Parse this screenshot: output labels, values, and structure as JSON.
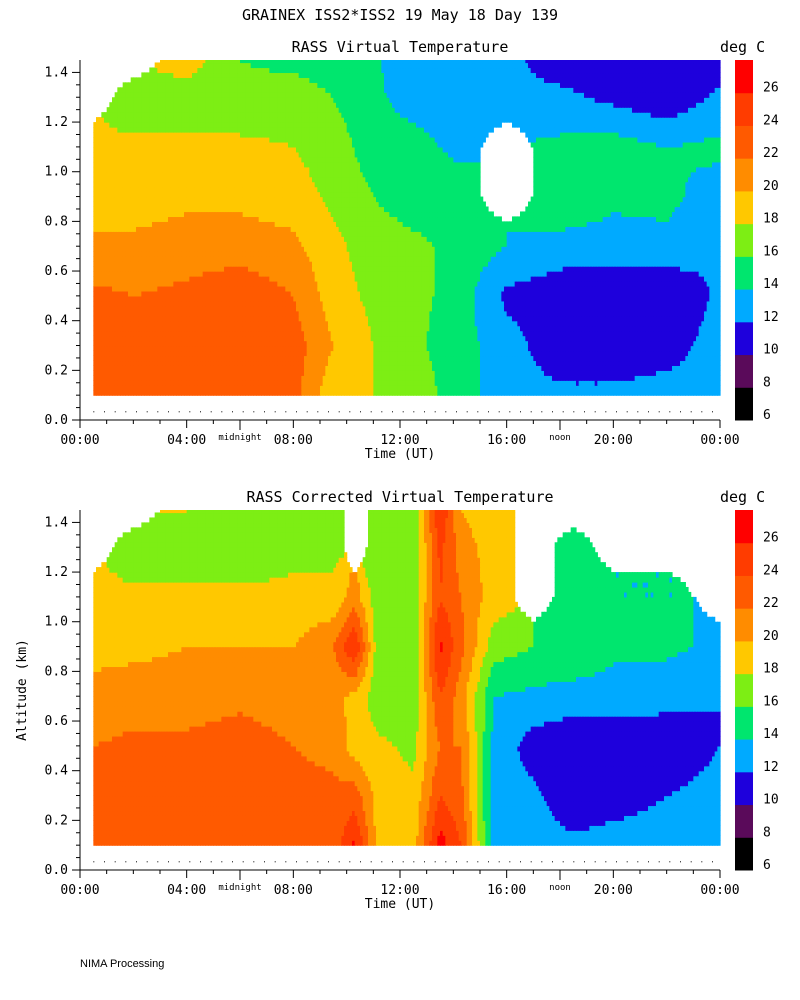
{
  "header": {
    "title": "GRAINEX ISS2*ISS2  19 May 18 Day 139"
  },
  "footer": {
    "text": "NIMA Processing"
  },
  "chart_data": [
    {
      "type": "heatmap",
      "title": "RASS Virtual Temperature",
      "xlabel": "Time (UT)",
      "ylabel": "",
      "colorbar_label": "deg C",
      "xlim": [
        0,
        24
      ],
      "ylim": [
        0.0,
        1.45
      ],
      "x_tick_labels": [
        "00:00",
        "04:00",
        "08:00",
        "12:00",
        "16:00",
        "20:00",
        "00:00"
      ],
      "y_tick_labels": [
        "0.0",
        "0.2",
        "0.4",
        "0.6",
        "0.8",
        "1.0",
        "1.2",
        "1.4"
      ],
      "time_markers": [
        {
          "label": "midnight",
          "x_hours": 6
        },
        {
          "label": "noon",
          "x_hours": 18
        }
      ],
      "levels": [
        6,
        8,
        10,
        12,
        14,
        16,
        18,
        20,
        22,
        24,
        26
      ],
      "level_colors": [
        "#000000",
        "#5a0a5a",
        "#1e00dc",
        "#00aaff",
        "#00e66e",
        "#7dee14",
        "#ffc800",
        "#ff8c00",
        "#ff5a00",
        "#ff3c00",
        "#ff0000"
      ],
      "grid": {
        "x": [
          0.5,
          2,
          4,
          6,
          8,
          9.5,
          11,
          12.5,
          14,
          16,
          18,
          20,
          22,
          24
        ],
        "y": [
          0.1,
          0.3,
          0.5,
          0.7,
          0.9,
          1.1,
          1.3,
          1.45
        ],
        "values": [
          [
            23.5,
            23.2,
            23.2,
            22.8,
            22.8,
            18.5,
            18.0,
            17.5,
            15.0,
            13.0,
            12.5,
            12.5,
            13.0,
            13.0
          ],
          [
            23.0,
            23.5,
            23.8,
            23.8,
            23.0,
            20.0,
            18.0,
            16.5,
            15.0,
            13.0,
            10.5,
            10.5,
            11.0,
            13.0
          ],
          [
            22.5,
            22.0,
            22.5,
            23.5,
            22.0,
            19.0,
            17.5,
            16.5,
            15.5,
            11.5,
            10.8,
            10.5,
            10.0,
            12.5
          ],
          [
            20.5,
            20.5,
            21.0,
            21.0,
            20.5,
            18.5,
            17.0,
            16.5,
            15.5,
            14.0,
            13.0,
            13.0,
            13.5,
            12.0
          ],
          [
            19.0,
            19.0,
            19.5,
            19.5,
            19.0,
            17.5,
            16.0,
            15.0,
            15.5,
            null,
            16.0,
            14.5,
            14.5,
            13.0
          ],
          [
            18.5,
            18.5,
            18.5,
            18.5,
            18.0,
            17.0,
            15.0,
            15.0,
            13.5,
            null,
            14.5,
            15.0,
            14.0,
            14.5
          ],
          [
            null,
            16.5,
            17.0,
            16.5,
            17.0,
            16.0,
            14.5,
            13.0,
            12.5,
            12.5,
            12.5,
            11.5,
            10.5,
            12.5
          ],
          [
            null,
            null,
            19.0,
            16.0,
            15.5,
            15.0,
            14.5,
            12.0,
            12.5,
            12.5,
            11.0,
            11.0,
            10.5,
            11.0
          ]
        ]
      }
    },
    {
      "type": "heatmap",
      "title": "RASS Corrected Virtual Temperature",
      "xlabel": "Time (UT)",
      "ylabel": "Altitude (km)",
      "colorbar_label": "deg C",
      "xlim": [
        0,
        24
      ],
      "ylim": [
        0.0,
        1.45
      ],
      "x_tick_labels": [
        "00:00",
        "04:00",
        "08:00",
        "12:00",
        "16:00",
        "20:00",
        "00:00"
      ],
      "y_tick_labels": [
        "0.0",
        "0.2",
        "0.4",
        "0.6",
        "0.8",
        "1.0",
        "1.2",
        "1.4"
      ],
      "time_markers": [
        {
          "label": "midnight",
          "x_hours": 6
        },
        {
          "label": "noon",
          "x_hours": 18
        }
      ],
      "levels": [
        6,
        8,
        10,
        12,
        14,
        16,
        18,
        20,
        22,
        24,
        26
      ],
      "level_colors": [
        "#000000",
        "#5a0a5a",
        "#1e00dc",
        "#00aaff",
        "#00e66e",
        "#7dee14",
        "#ffc800",
        "#ff8c00",
        "#ff5a00",
        "#ff3c00",
        "#ff0000"
      ],
      "grid": {
        "x": [
          0.5,
          2,
          4,
          6,
          8,
          9.5,
          10.3,
          11.2,
          12.5,
          13.5,
          14.3,
          15.5,
          17,
          18.5,
          20,
          22,
          24
        ],
        "y": [
          0.1,
          0.3,
          0.5,
          0.7,
          0.9,
          1.1,
          1.3,
          1.45
        ],
        "values": [
          [
            23.5,
            23.0,
            23.0,
            23.0,
            22.8,
            22.5,
            26.5,
            19.0,
            19.0,
            27.0,
            24.0,
            13.0,
            13.0,
            12.5,
            13.0,
            13.0,
            12.5
          ],
          [
            23.0,
            23.0,
            23.0,
            23.0,
            22.5,
            22.5,
            23.0,
            19.0,
            18.5,
            24.0,
            22.5,
            13.0,
            12.5,
            10.5,
            11.0,
            12.0,
            12.5
          ],
          [
            22.0,
            22.5,
            22.5,
            23.0,
            22.0,
            21.5,
            19.0,
            18.5,
            17.5,
            22.0,
            22.0,
            13.5,
            11.0,
            10.5,
            10.5,
            11.0,
            12.0
          ],
          [
            20.5,
            21.0,
            21.0,
            21.5,
            21.0,
            20.5,
            19.5,
            16.5,
            16.5,
            24.0,
            21.0,
            14.0,
            13.5,
            13.0,
            13.0,
            12.5,
            12.0
          ],
          [
            19.5,
            19.5,
            20.0,
            20.0,
            20.0,
            22.0,
            26.0,
            16.5,
            16.0,
            26.5,
            22.5,
            17.0,
            16.0,
            16.0,
            14.5,
            14.5,
            13.5
          ],
          [
            19.0,
            18.5,
            18.5,
            18.5,
            18.5,
            18.5,
            21.0,
            16.5,
            16.5,
            24.0,
            22.0,
            19.0,
            null,
            15.0,
            14.0,
            14.0,
            null
          ],
          [
            null,
            16.5,
            17.0,
            16.5,
            17.5,
            17.5,
            null,
            16.0,
            16.0,
            24.5,
            21.0,
            19.0,
            null,
            15.0,
            null,
            null,
            null
          ],
          [
            null,
            null,
            18.0,
            17.0,
            17.0,
            17.5,
            null,
            16.5,
            16.5,
            26.0,
            20.0,
            18.5,
            null,
            null,
            null,
            null,
            null
          ]
        ]
      }
    }
  ]
}
